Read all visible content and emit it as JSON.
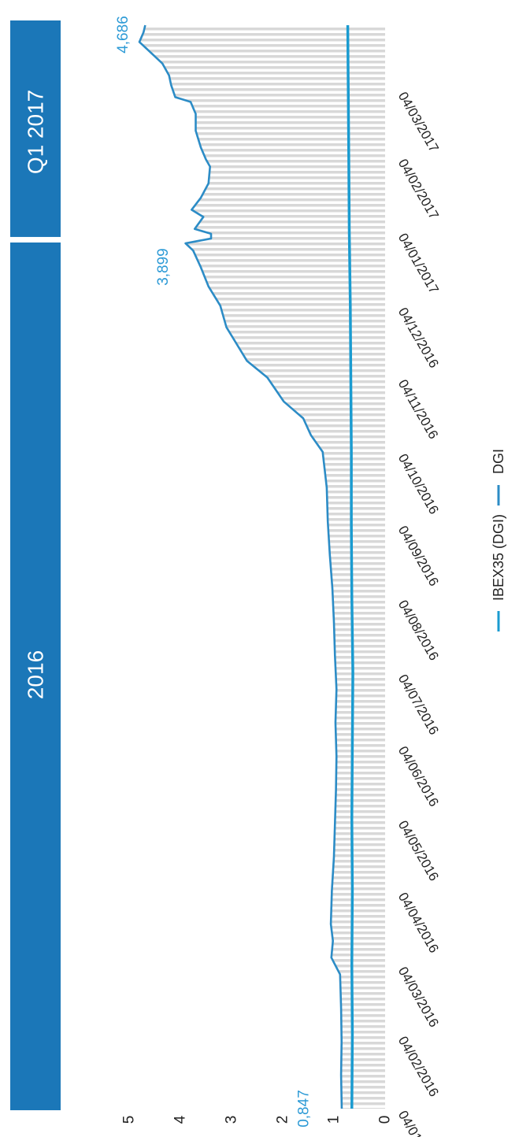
{
  "colors": {
    "band": "#1b77b8",
    "dgi": "#2c8cc6",
    "ibex": "#1a9bd0",
    "annotation": "#2c9ad6",
    "hatch": "#cfcfcf"
  },
  "periods": [
    {
      "label": "2016",
      "from": "2016-01-04",
      "to": "2016-12-31"
    },
    {
      "label": "Q1 2017",
      "from": "2017-01-01",
      "to": "2017-03-31"
    }
  ],
  "chart_data": {
    "type": "line",
    "orientation": "rotated-90-clockwise",
    "x_range": [
      "2016-01-04",
      "2017-03-31"
    ],
    "y_range": [
      0,
      5
    ],
    "y_ticks": [
      "0",
      "1",
      "2",
      "3",
      "4",
      "5"
    ],
    "x_ticks": [
      {
        "date": "2016-01-04",
        "label": "04/01/2016"
      },
      {
        "date": "2016-02-04",
        "label": "04/02/2016"
      },
      {
        "date": "2016-03-04",
        "label": "04/03/2016"
      },
      {
        "date": "2016-04-04",
        "label": "04/04/2016"
      },
      {
        "date": "2016-05-04",
        "label": "04/05/2016"
      },
      {
        "date": "2016-06-04",
        "label": "04/06/2016"
      },
      {
        "date": "2016-07-04",
        "label": "04/07/2016"
      },
      {
        "date": "2016-08-04",
        "label": "04/08/2016"
      },
      {
        "date": "2016-09-04",
        "label": "04/09/2016"
      },
      {
        "date": "2016-10-04",
        "label": "04/10/2016"
      },
      {
        "date": "2016-11-04",
        "label": "04/11/2016"
      },
      {
        "date": "2016-12-04",
        "label": "04/12/2016"
      },
      {
        "date": "2017-01-04",
        "label": "04/01/2017"
      },
      {
        "date": "2017-02-04",
        "label": "04/02/2017"
      },
      {
        "date": "2017-03-04",
        "label": "04/03/2017"
      }
    ],
    "annotations": [
      {
        "label": "0,847",
        "date": "2016-01-04",
        "value": 0.847
      },
      {
        "label": "3,899",
        "date": "2016-12-30",
        "value": 3.899
      },
      {
        "label": "4,686",
        "date": "2017-03-31",
        "value": 4.686
      }
    ],
    "legend": [
      "IBEX35 (DGI)",
      "DGI"
    ],
    "series": [
      {
        "name": "DGI",
        "points": [
          [
            "2016-01-04",
            0.847
          ],
          [
            "2016-01-18",
            0.86
          ],
          [
            "2016-02-01",
            0.85
          ],
          [
            "2016-02-15",
            0.86
          ],
          [
            "2016-02-29",
            0.88
          ],
          [
            "2016-03-07",
            1.05
          ],
          [
            "2016-03-14",
            1.02
          ],
          [
            "2016-03-21",
            1.06
          ],
          [
            "2016-04-04",
            1.04
          ],
          [
            "2016-04-18",
            1.0
          ],
          [
            "2016-05-02",
            0.98
          ],
          [
            "2016-05-16",
            0.96
          ],
          [
            "2016-05-30",
            0.95
          ],
          [
            "2016-06-13",
            0.97
          ],
          [
            "2016-06-27",
            0.95
          ],
          [
            "2016-07-11",
            0.98
          ],
          [
            "2016-07-25",
            1.0
          ],
          [
            "2016-08-08",
            1.03
          ],
          [
            "2016-08-22",
            1.08
          ],
          [
            "2016-09-05",
            1.12
          ],
          [
            "2016-09-19",
            1.14
          ],
          [
            "2016-10-04",
            1.22
          ],
          [
            "2016-10-11",
            1.45
          ],
          [
            "2016-10-18",
            1.6
          ],
          [
            "2016-10-25",
            1.98
          ],
          [
            "2016-11-04",
            2.3
          ],
          [
            "2016-11-11",
            2.7
          ],
          [
            "2016-11-18",
            2.9
          ],
          [
            "2016-11-25",
            3.1
          ],
          [
            "2016-12-04",
            3.22
          ],
          [
            "2016-12-12",
            3.45
          ],
          [
            "2016-12-20",
            3.6
          ],
          [
            "2016-12-27",
            3.75
          ],
          [
            "2016-12-30",
            3.899
          ],
          [
            "2017-01-01",
            3.4
          ],
          [
            "2017-01-03",
            3.4
          ],
          [
            "2017-01-05",
            3.72
          ],
          [
            "2017-01-10",
            3.55
          ],
          [
            "2017-01-13",
            3.78
          ],
          [
            "2017-01-18",
            3.6
          ],
          [
            "2017-01-24",
            3.45
          ],
          [
            "2017-01-31",
            3.42
          ],
          [
            "2017-02-03",
            3.5
          ],
          [
            "2017-02-08",
            3.6
          ],
          [
            "2017-02-15",
            3.7
          ],
          [
            "2017-02-22",
            3.7
          ],
          [
            "2017-02-27",
            3.8
          ],
          [
            "2017-03-01",
            4.1
          ],
          [
            "2017-03-06",
            4.18
          ],
          [
            "2017-03-10",
            4.22
          ],
          [
            "2017-03-15",
            4.35
          ],
          [
            "2017-03-20",
            4.6
          ],
          [
            "2017-03-24",
            4.8
          ],
          [
            "2017-03-28",
            4.72
          ],
          [
            "2017-03-31",
            4.686
          ]
        ]
      },
      {
        "name": "IBEX35 (DGI)",
        "points": [
          [
            "2016-01-04",
            0.65
          ],
          [
            "2016-02-04",
            0.64
          ],
          [
            "2016-03-04",
            0.65
          ],
          [
            "2016-04-04",
            0.64
          ],
          [
            "2016-05-04",
            0.65
          ],
          [
            "2016-06-04",
            0.64
          ],
          [
            "2016-07-04",
            0.63
          ],
          [
            "2016-08-04",
            0.65
          ],
          [
            "2016-09-04",
            0.66
          ],
          [
            "2016-10-04",
            0.66
          ],
          [
            "2016-11-04",
            0.67
          ],
          [
            "2016-12-04",
            0.68
          ],
          [
            "2017-01-04",
            0.7
          ],
          [
            "2017-02-04",
            0.71
          ],
          [
            "2017-03-04",
            0.72
          ],
          [
            "2017-03-31",
            0.73
          ]
        ]
      }
    ]
  }
}
